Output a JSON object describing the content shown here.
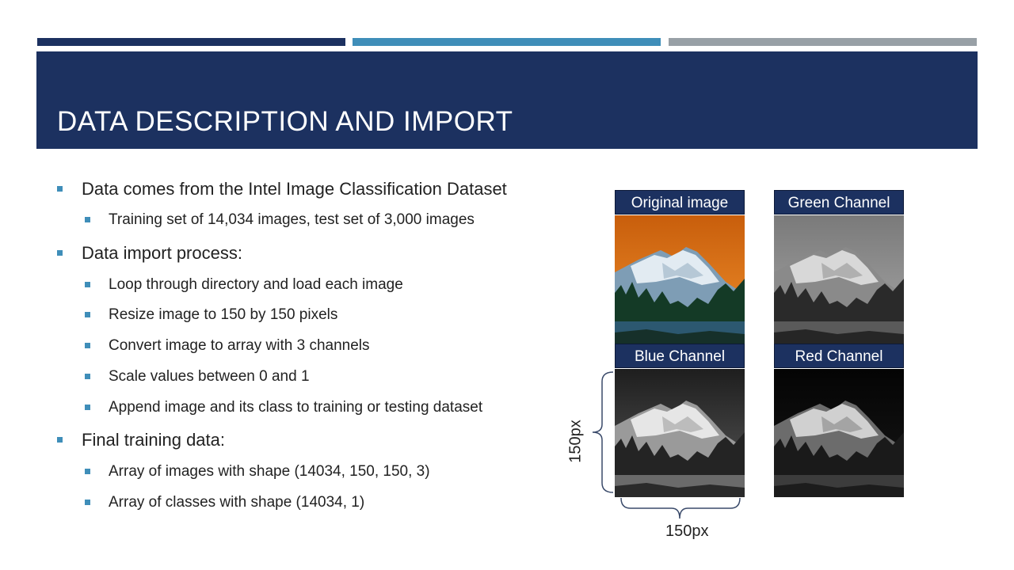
{
  "slide": {
    "title": "DATA DESCRIPTION AND IMPORT"
  },
  "bullets": [
    {
      "level": 1,
      "text": "Data comes from the Intel Image Classification  Dataset"
    },
    {
      "level": 2,
      "text": "Training set of 14,034 images, test set of 3,000 images"
    },
    {
      "level": 1,
      "text": "Data import process:"
    },
    {
      "level": 2,
      "text": "Loop through directory and load each image"
    },
    {
      "level": 2,
      "text": "Resize image to 150 by 150 pixels"
    },
    {
      "level": 2,
      "text": "Convert image to array with 3 channels"
    },
    {
      "level": 2,
      "text": "Scale values between 0 and 1"
    },
    {
      "level": 2,
      "text": "Append image and its class to training or testing dataset"
    },
    {
      "level": 1,
      "text": "Final training data:"
    },
    {
      "level": 2,
      "text": "Array of images with shape (14034, 150, 150, 3)"
    },
    {
      "level": 2,
      "text": "Array of classes with shape (14034, 1)"
    }
  ],
  "figure": {
    "panels": [
      {
        "label": "Original image"
      },
      {
        "label": "Green Channel"
      },
      {
        "label": "Blue Channel"
      },
      {
        "label": "Red Channel"
      }
    ],
    "height_label": "150px",
    "width_label": "150px"
  },
  "colors": {
    "title_band": "#1c3160",
    "accent": "#3f8eb9",
    "grey_bar": "#98a0a6",
    "sky_orange": "#e0781c"
  }
}
